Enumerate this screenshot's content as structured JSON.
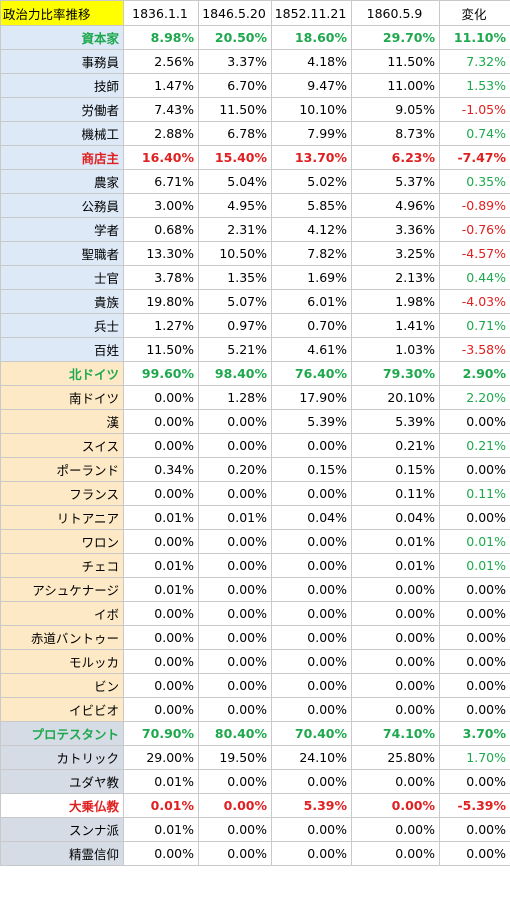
{
  "header": {
    "title": "政治力比率推移",
    "dates": [
      "1836.1.1",
      "1846.5.20",
      "1852.11.21",
      "1860.5.9"
    ],
    "change_label": "変化"
  },
  "colors": {
    "positive": "#1ea84d",
    "negative": "#e02020",
    "header_highlight": "#ffff00",
    "group_blue": "#dde9f7",
    "group_orange": "#fde9c6",
    "group_gray": "#d6dce5"
  },
  "rows": [
    {
      "label": "資本家",
      "values": [
        "8.98%",
        "20.50%",
        "18.60%",
        "29.70%"
      ],
      "change": "11.10%",
      "change_sign": "pos",
      "bold": true,
      "label_color": "green",
      "value_color": "green",
      "bg": "blue"
    },
    {
      "label": "事務員",
      "values": [
        "2.56%",
        "3.37%",
        "4.18%",
        "11.50%"
      ],
      "change": "7.32%",
      "change_sign": "pos",
      "bold": false,
      "label_color": "black",
      "value_color": "black",
      "bg": "blue"
    },
    {
      "label": "技師",
      "values": [
        "1.47%",
        "6.70%",
        "9.47%",
        "11.00%"
      ],
      "change": "1.53%",
      "change_sign": "pos",
      "bold": false,
      "label_color": "black",
      "value_color": "black",
      "bg": "blue"
    },
    {
      "label": "労働者",
      "values": [
        "7.43%",
        "11.50%",
        "10.10%",
        "9.05%"
      ],
      "change": "-1.05%",
      "change_sign": "neg",
      "bold": false,
      "label_color": "black",
      "value_color": "black",
      "bg": "blue"
    },
    {
      "label": "機械工",
      "values": [
        "2.88%",
        "6.78%",
        "7.99%",
        "8.73%"
      ],
      "change": "0.74%",
      "change_sign": "pos",
      "bold": false,
      "label_color": "black",
      "value_color": "black",
      "bg": "blue"
    },
    {
      "label": "商店主",
      "values": [
        "16.40%",
        "15.40%",
        "13.70%",
        "6.23%"
      ],
      "change": "-7.47%",
      "change_sign": "neg",
      "bold": true,
      "label_color": "red",
      "value_color": "red",
      "bg": "blue"
    },
    {
      "label": "農家",
      "values": [
        "6.71%",
        "5.04%",
        "5.02%",
        "5.37%"
      ],
      "change": "0.35%",
      "change_sign": "pos",
      "bold": false,
      "label_color": "black",
      "value_color": "black",
      "bg": "blue"
    },
    {
      "label": "公務員",
      "values": [
        "3.00%",
        "4.95%",
        "5.85%",
        "4.96%"
      ],
      "change": "-0.89%",
      "change_sign": "neg",
      "bold": false,
      "label_color": "black",
      "value_color": "black",
      "bg": "blue"
    },
    {
      "label": "学者",
      "values": [
        "0.68%",
        "2.31%",
        "4.12%",
        "3.36%"
      ],
      "change": "-0.76%",
      "change_sign": "neg",
      "bold": false,
      "label_color": "black",
      "value_color": "black",
      "bg": "blue"
    },
    {
      "label": "聖職者",
      "values": [
        "13.30%",
        "10.50%",
        "7.82%",
        "3.25%"
      ],
      "change": "-4.57%",
      "change_sign": "neg",
      "bold": false,
      "label_color": "black",
      "value_color": "black",
      "bg": "blue"
    },
    {
      "label": "士官",
      "values": [
        "3.78%",
        "1.35%",
        "1.69%",
        "2.13%"
      ],
      "change": "0.44%",
      "change_sign": "pos",
      "bold": false,
      "label_color": "black",
      "value_color": "black",
      "bg": "blue"
    },
    {
      "label": "貴族",
      "values": [
        "19.80%",
        "5.07%",
        "6.01%",
        "1.98%"
      ],
      "change": "-4.03%",
      "change_sign": "neg",
      "bold": false,
      "label_color": "black",
      "value_color": "black",
      "bg": "blue"
    },
    {
      "label": "兵士",
      "values": [
        "1.27%",
        "0.97%",
        "0.70%",
        "1.41%"
      ],
      "change": "0.71%",
      "change_sign": "pos",
      "bold": false,
      "label_color": "black",
      "value_color": "black",
      "bg": "blue"
    },
    {
      "label": "百姓",
      "values": [
        "11.50%",
        "5.21%",
        "4.61%",
        "1.03%"
      ],
      "change": "-3.58%",
      "change_sign": "neg",
      "bold": false,
      "label_color": "black",
      "value_color": "black",
      "bg": "blue"
    },
    {
      "label": "北ドイツ",
      "values": [
        "99.60%",
        "98.40%",
        "76.40%",
        "79.30%"
      ],
      "change": "2.90%",
      "change_sign": "pos",
      "bold": true,
      "label_color": "green",
      "value_color": "green",
      "bg": "orange"
    },
    {
      "label": "南ドイツ",
      "values": [
        "0.00%",
        "1.28%",
        "17.90%",
        "20.10%"
      ],
      "change": "2.20%",
      "change_sign": "pos",
      "bold": false,
      "label_color": "black",
      "value_color": "black",
      "bg": "orange"
    },
    {
      "label": "漢",
      "values": [
        "0.00%",
        "0.00%",
        "5.39%",
        "5.39%"
      ],
      "change": "0.00%",
      "change_sign": "zero",
      "bold": false,
      "label_color": "black",
      "value_color": "black",
      "bg": "orange"
    },
    {
      "label": "スイス",
      "values": [
        "0.00%",
        "0.00%",
        "0.00%",
        "0.21%"
      ],
      "change": "0.21%",
      "change_sign": "pos",
      "bold": false,
      "label_color": "black",
      "value_color": "black",
      "bg": "orange"
    },
    {
      "label": "ポーランド",
      "values": [
        "0.34%",
        "0.20%",
        "0.15%",
        "0.15%"
      ],
      "change": "0.00%",
      "change_sign": "zero",
      "bold": false,
      "label_color": "black",
      "value_color": "black",
      "bg": "orange"
    },
    {
      "label": "フランス",
      "values": [
        "0.00%",
        "0.00%",
        "0.00%",
        "0.11%"
      ],
      "change": "0.11%",
      "change_sign": "pos",
      "bold": false,
      "label_color": "black",
      "value_color": "black",
      "bg": "orange"
    },
    {
      "label": "リトアニア",
      "values": [
        "0.01%",
        "0.01%",
        "0.04%",
        "0.04%"
      ],
      "change": "0.00%",
      "change_sign": "zero",
      "bold": false,
      "label_color": "black",
      "value_color": "black",
      "bg": "orange"
    },
    {
      "label": "ワロン",
      "values": [
        "0.00%",
        "0.00%",
        "0.00%",
        "0.01%"
      ],
      "change": "0.01%",
      "change_sign": "pos",
      "bold": false,
      "label_color": "black",
      "value_color": "black",
      "bg": "orange"
    },
    {
      "label": "チェコ",
      "values": [
        "0.01%",
        "0.00%",
        "0.00%",
        "0.01%"
      ],
      "change": "0.01%",
      "change_sign": "pos",
      "bold": false,
      "label_color": "black",
      "value_color": "black",
      "bg": "orange"
    },
    {
      "label": "アシュケナージ",
      "values": [
        "0.01%",
        "0.00%",
        "0.00%",
        "0.00%"
      ],
      "change": "0.00%",
      "change_sign": "zero",
      "bold": false,
      "label_color": "black",
      "value_color": "black",
      "bg": "orange"
    },
    {
      "label": "イボ",
      "values": [
        "0.00%",
        "0.00%",
        "0.00%",
        "0.00%"
      ],
      "change": "0.00%",
      "change_sign": "zero",
      "bold": false,
      "label_color": "black",
      "value_color": "black",
      "bg": "orange"
    },
    {
      "label": "赤道バントゥー",
      "values": [
        "0.00%",
        "0.00%",
        "0.00%",
        "0.00%"
      ],
      "change": "0.00%",
      "change_sign": "zero",
      "bold": false,
      "label_color": "black",
      "value_color": "black",
      "bg": "orange"
    },
    {
      "label": "モルッカ",
      "values": [
        "0.00%",
        "0.00%",
        "0.00%",
        "0.00%"
      ],
      "change": "0.00%",
      "change_sign": "zero",
      "bold": false,
      "label_color": "black",
      "value_color": "black",
      "bg": "orange"
    },
    {
      "label": "ビン",
      "values": [
        "0.00%",
        "0.00%",
        "0.00%",
        "0.00%"
      ],
      "change": "0.00%",
      "change_sign": "zero",
      "bold": false,
      "label_color": "black",
      "value_color": "black",
      "bg": "orange"
    },
    {
      "label": "イビビオ",
      "values": [
        "0.00%",
        "0.00%",
        "0.00%",
        "0.00%"
      ],
      "change": "0.00%",
      "change_sign": "zero",
      "bold": false,
      "label_color": "black",
      "value_color": "black",
      "bg": "orange"
    },
    {
      "label": "プロテスタント",
      "values": [
        "70.90%",
        "80.40%",
        "70.40%",
        "74.10%"
      ],
      "change": "3.70%",
      "change_sign": "pos",
      "bold": true,
      "label_color": "green",
      "value_color": "green",
      "bg": "gray"
    },
    {
      "label": "カトリック",
      "values": [
        "29.00%",
        "19.50%",
        "24.10%",
        "25.80%"
      ],
      "change": "1.70%",
      "change_sign": "pos",
      "bold": false,
      "label_color": "black",
      "value_color": "black",
      "bg": "gray"
    },
    {
      "label": "ユダヤ教",
      "values": [
        "0.01%",
        "0.00%",
        "0.00%",
        "0.00%"
      ],
      "change": "0.00%",
      "change_sign": "zero",
      "bold": false,
      "label_color": "black",
      "value_color": "black",
      "bg": "gray"
    },
    {
      "label": "大乗仏教",
      "values": [
        "0.01%",
        "0.00%",
        "5.39%",
        "0.00%"
      ],
      "change": "-5.39%",
      "change_sign": "neg",
      "bold": true,
      "label_color": "red",
      "value_color": "red",
      "bg": "white"
    },
    {
      "label": "スンナ派",
      "values": [
        "0.01%",
        "0.00%",
        "0.00%",
        "0.00%"
      ],
      "change": "0.00%",
      "change_sign": "zero",
      "bold": false,
      "label_color": "black",
      "value_color": "black",
      "bg": "gray"
    },
    {
      "label": "精霊信仰",
      "values": [
        "0.00%",
        "0.00%",
        "0.00%",
        "0.00%"
      ],
      "change": "0.00%",
      "change_sign": "zero",
      "bold": false,
      "label_color": "black",
      "value_color": "black",
      "bg": "gray"
    }
  ]
}
